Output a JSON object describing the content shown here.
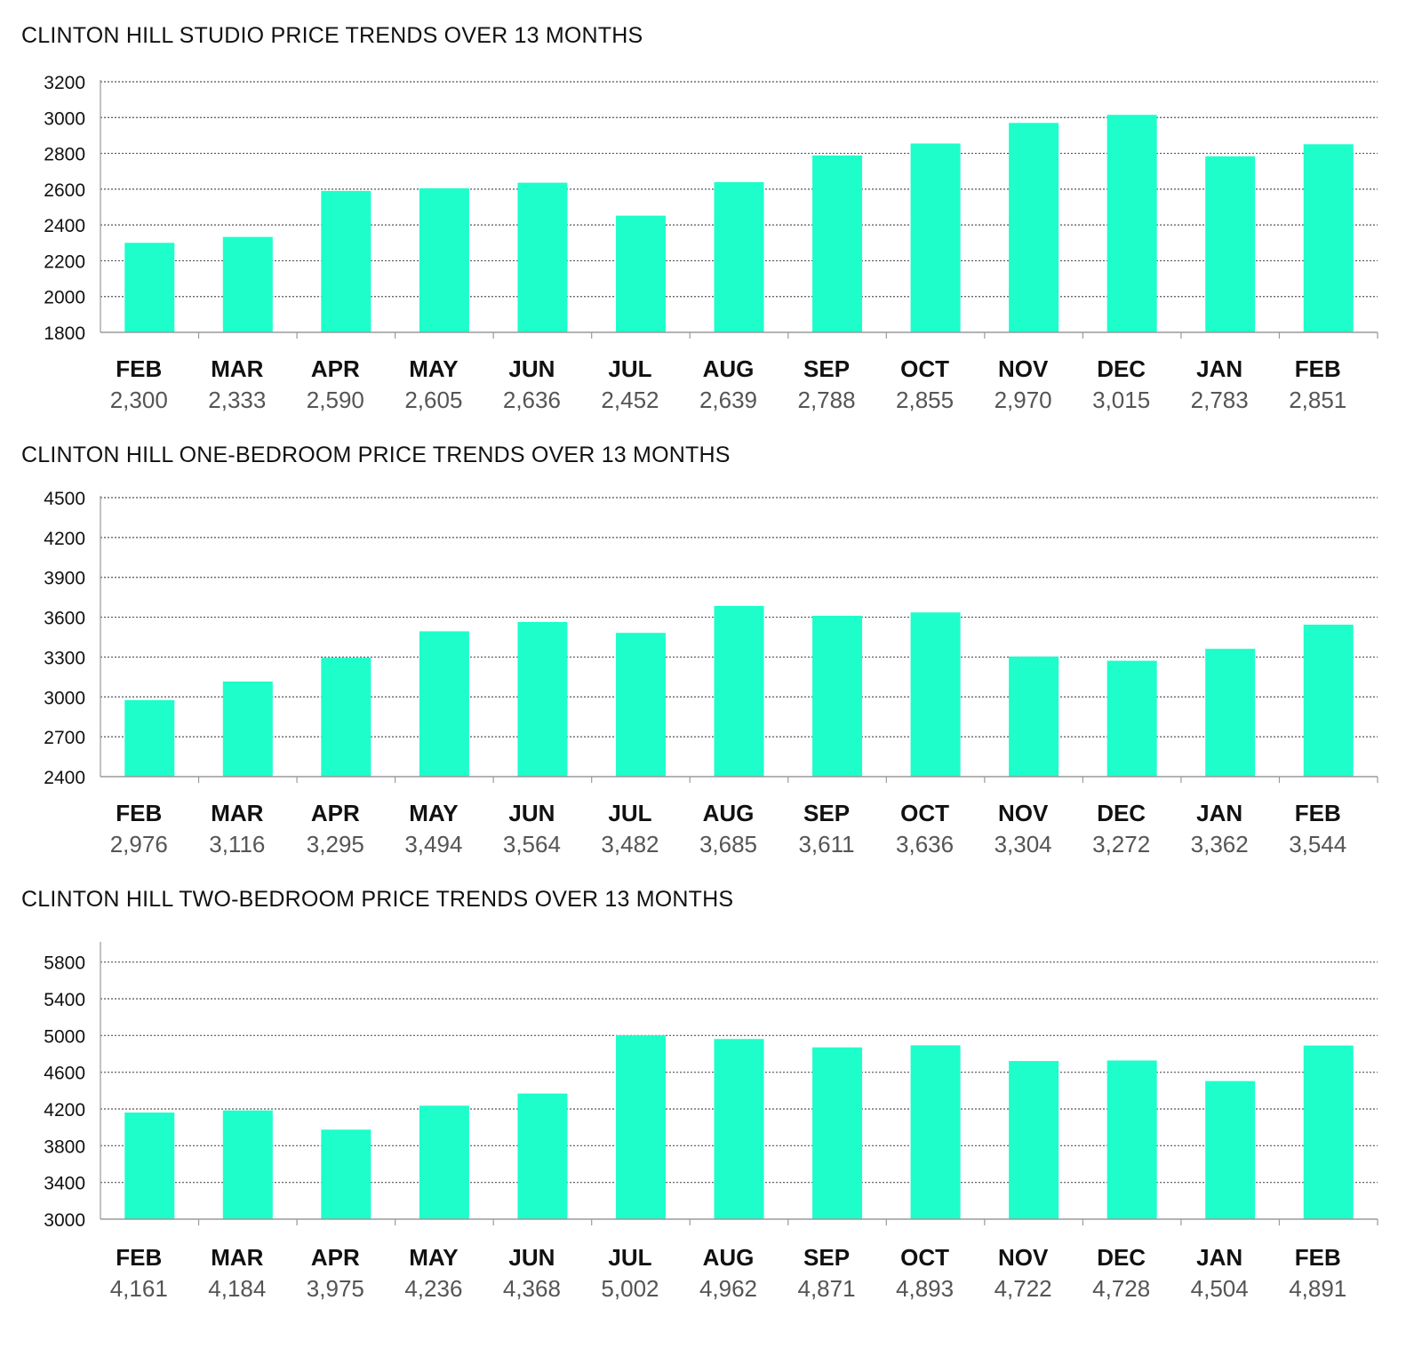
{
  "colors": {
    "bar": "#1dfecb",
    "grid": "#555555",
    "axis": "#9a9a9a"
  },
  "chart_data": [
    {
      "type": "bar",
      "title": "CLINTON HILL STUDIO PRICE TRENDS OVER 13 MONTHS",
      "categories": [
        "FEB",
        "MAR",
        "APR",
        "MAY",
        "JUN",
        "JUL",
        "AUG",
        "SEP",
        "OCT",
        "NOV",
        "DEC",
        "JAN",
        "FEB"
      ],
      "values": [
        2300,
        2333,
        2590,
        2605,
        2636,
        2452,
        2639,
        2788,
        2855,
        2970,
        3015,
        2783,
        2851
      ],
      "value_labels": [
        "2,300",
        "2,333",
        "2,590",
        "2,605",
        "2,636",
        "2,452",
        "2,639",
        "2,788",
        "2,855",
        "2,970",
        "3,015",
        "2,783",
        "2,851"
      ],
      "yticks": [
        1800,
        2000,
        2200,
        2400,
        2600,
        2800,
        3000,
        3200
      ],
      "ylim": [
        1800,
        3200
      ],
      "grid": true,
      "xlabel": "",
      "ylabel": ""
    },
    {
      "type": "bar",
      "title": "CLINTON HILL ONE-BEDROOM PRICE TRENDS OVER 13 MONTHS",
      "categories": [
        "FEB",
        "MAR",
        "APR",
        "MAY",
        "JUN",
        "JUL",
        "AUG",
        "SEP",
        "OCT",
        "NOV",
        "DEC",
        "JAN",
        "FEB"
      ],
      "values": [
        2976,
        3116,
        3295,
        3494,
        3564,
        3482,
        3685,
        3611,
        3636,
        3304,
        3272,
        3362,
        3544
      ],
      "value_labels": [
        "2,976",
        "3,116",
        "3,295",
        "3,494",
        "3,564",
        "3,482",
        "3,685",
        "3,611",
        "3,636",
        "3,304",
        "3,272",
        "3,362",
        "3,544"
      ],
      "yticks": [
        2400,
        2700,
        3000,
        3300,
        3600,
        3900,
        4200,
        4500
      ],
      "ylim": [
        2400,
        4500
      ],
      "grid": true,
      "xlabel": "",
      "ylabel": ""
    },
    {
      "type": "bar",
      "title": "CLINTON HILL TWO-BEDROOM PRICE TRENDS OVER 13 MONTHS",
      "categories": [
        "FEB",
        "MAR",
        "APR",
        "MAY",
        "JUN",
        "JUL",
        "AUG",
        "SEP",
        "OCT",
        "NOV",
        "DEC",
        "JAN",
        "FEB"
      ],
      "values": [
        4161,
        4184,
        3975,
        4236,
        4368,
        5002,
        4962,
        4871,
        4893,
        4722,
        4728,
        4504,
        4891
      ],
      "value_labels": [
        "4,161",
        "4,184",
        "3,975",
        "4,236",
        "4,368",
        "5,002",
        "4,962",
        "4,871",
        "4,893",
        "4,722",
        "4,728",
        "4,504",
        "4,891"
      ],
      "yticks": [
        3000,
        3400,
        3800,
        4200,
        4600,
        5000,
        5400,
        5800
      ],
      "ylim": [
        3000,
        6000
      ],
      "grid": true,
      "xlabel": "",
      "ylabel": ""
    }
  ]
}
